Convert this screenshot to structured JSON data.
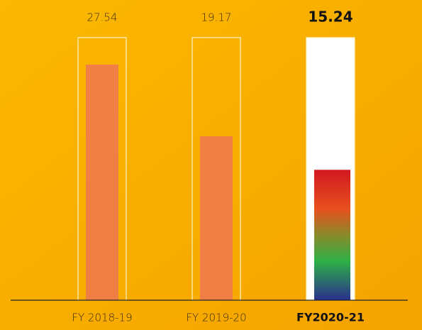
{
  "chart_data": {
    "type": "bar",
    "categories": [
      "FY 2018-19",
      "FY 2019-20",
      "FY2020-21"
    ],
    "values": [
      27.54,
      19.17,
      15.24
    ],
    "color": "#f07f45"
  }
}
